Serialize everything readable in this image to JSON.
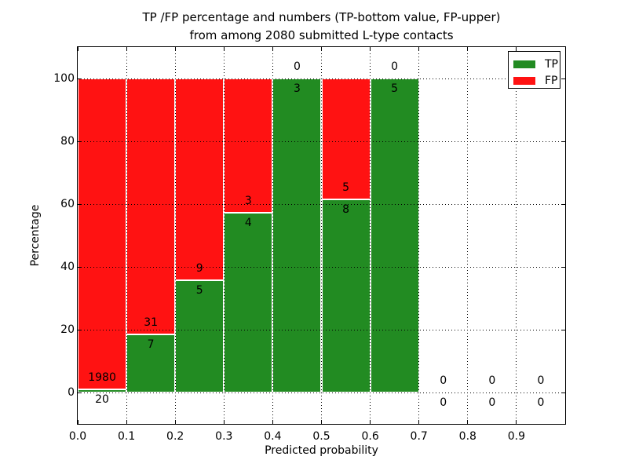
{
  "title": {
    "line1": "TP /FP percentage and numbers (TP-bottom value, FP-upper)",
    "line2": "from among 2080 submitted L-type contacts"
  },
  "axes": {
    "xlabel": "Predicted probability",
    "ylabel": "Percentage",
    "x_ticks": [
      "0.0",
      "0.1",
      "0.2",
      "0.3",
      "0.4",
      "0.5",
      "0.6",
      "0.7",
      "0.8",
      "0.9"
    ],
    "y_ticks": [
      "0",
      "20",
      "40",
      "60",
      "80",
      "100"
    ],
    "xlim": [
      0.0,
      1.0
    ],
    "ylim": [
      -10,
      110
    ],
    "grid": "dotted"
  },
  "legend": {
    "position": "upper-right",
    "items": [
      {
        "id": "tp",
        "label": "TP",
        "color": "#228b22"
      },
      {
        "id": "fp",
        "label": "FP",
        "color": "#ff1212"
      }
    ]
  },
  "chart_data": {
    "type": "bar",
    "stacked": true,
    "title": "TP /FP percentage and numbers (TP-bottom value, FP-upper) from among 2080 submitted L-type contacts",
    "xlabel": "Predicted probability",
    "ylabel": "Percentage",
    "ylim": [
      -10,
      110
    ],
    "xlim": [
      0.0,
      1.0
    ],
    "bin_width": 0.1,
    "total_contacts": 2080,
    "colors": {
      "tp": "#228b22",
      "fp": "#ff1212",
      "bar_edge": "#ffffff"
    },
    "bins": [
      {
        "range": "0.0-0.1",
        "x0": 0.0,
        "tp_count": 20,
        "fp_count": 1980,
        "tp_pct": 1.0,
        "fp_pct": 99.0
      },
      {
        "range": "0.1-0.2",
        "x0": 0.1,
        "tp_count": 7,
        "fp_count": 31,
        "tp_pct": 18.42,
        "fp_pct": 81.58
      },
      {
        "range": "0.2-0.3",
        "x0": 0.2,
        "tp_count": 5,
        "fp_count": 9,
        "tp_pct": 35.71,
        "fp_pct": 64.29
      },
      {
        "range": "0.3-0.4",
        "x0": 0.3,
        "tp_count": 4,
        "fp_count": 3,
        "tp_pct": 57.14,
        "fp_pct": 42.86
      },
      {
        "range": "0.4-0.5",
        "x0": 0.4,
        "tp_count": 3,
        "fp_count": 0,
        "tp_pct": 100.0,
        "fp_pct": 0.0
      },
      {
        "range": "0.5-0.6",
        "x0": 0.5,
        "tp_count": 8,
        "fp_count": 5,
        "tp_pct": 61.54,
        "fp_pct": 38.46
      },
      {
        "range": "0.6-0.7",
        "x0": 0.6,
        "tp_count": 5,
        "fp_count": 0,
        "tp_pct": 100.0,
        "fp_pct": 0.0
      },
      {
        "range": "0.7-0.8",
        "x0": 0.7,
        "tp_count": 0,
        "fp_count": 0,
        "tp_pct": 0.0,
        "fp_pct": 0.0
      },
      {
        "range": "0.8-0.9",
        "x0": 0.8,
        "tp_count": 0,
        "fp_count": 0,
        "tp_pct": 0.0,
        "fp_pct": 0.0
      },
      {
        "range": "0.9-1.0",
        "x0": 0.9,
        "tp_count": 0,
        "fp_count": 0,
        "tp_pct": 0.0,
        "fp_pct": 0.0
      }
    ]
  }
}
